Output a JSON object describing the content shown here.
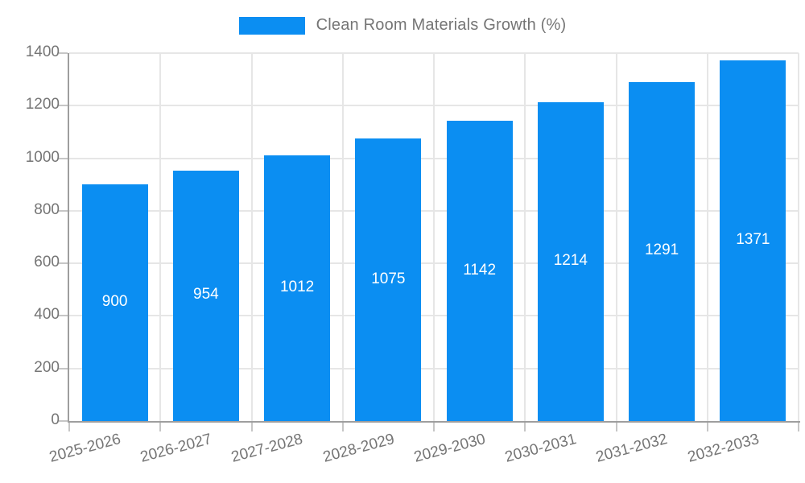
{
  "chart_data": {
    "type": "bar",
    "title": "Clean Room Materials Growth (%)",
    "legend": {
      "position": "top-center",
      "label": "Clean Room Materials Growth (%)",
      "swatch_color": "#0b8ef2"
    },
    "categories": [
      "2025-2026",
      "2026-2027",
      "2027-2028",
      "2028-2029",
      "2029-2030",
      "2030-2031",
      "2031-2032",
      "2032-2033"
    ],
    "values": [
      900,
      954,
      1012,
      1075,
      1142,
      1214,
      1291,
      1371
    ],
    "xlabel": "",
    "ylabel": "",
    "ylim": [
      0,
      1400
    ],
    "yticks": [
      0,
      200,
      400,
      600,
      800,
      1000,
      1200,
      1400
    ],
    "grid": true,
    "x_tick_rotation_deg": -15,
    "value_labels": "inside-center",
    "colors": {
      "bar": "#0b8ef2",
      "value_label": "#ffffff",
      "axis_line": "#9e9e9e",
      "gridline": "#e6e6e6",
      "tick_mark": "#c6c6c6",
      "tick_label": "#757575",
      "legend_text": "#757575",
      "background": "#ffffff"
    }
  }
}
